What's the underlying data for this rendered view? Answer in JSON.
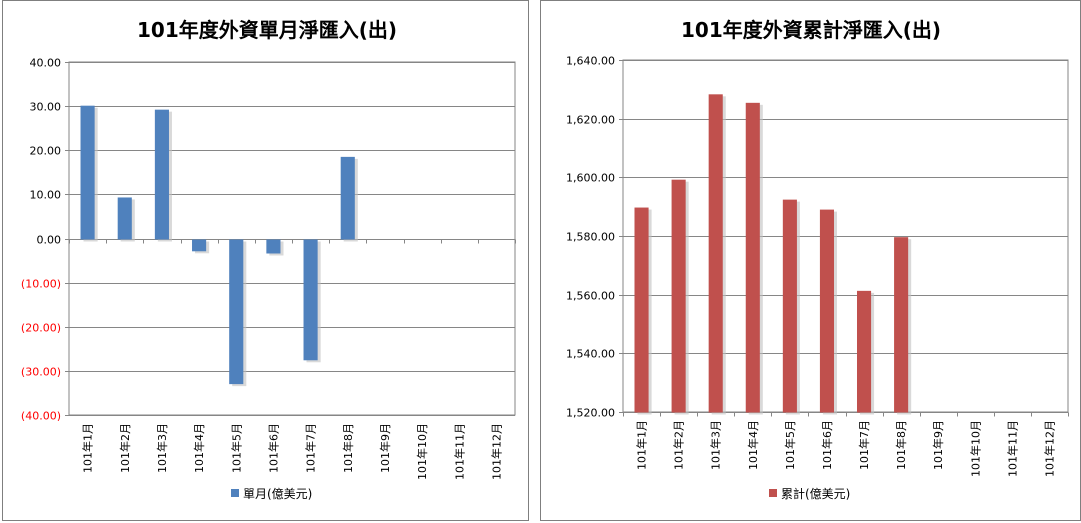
{
  "chart_data": [
    {
      "type": "bar",
      "title": "101年度外資單月淨匯入(出)",
      "categories": [
        "101年1月",
        "101年2月",
        "101年3月",
        "101年4月",
        "101年5月",
        "101年6月",
        "101年7月",
        "101年8月",
        "101年9月",
        "101年10月",
        "101年11月",
        "101年12月"
      ],
      "series": [
        {
          "name": "單月(億美元)",
          "values": [
            30.1,
            9.3,
            29.2,
            -2.9,
            -33.0,
            -3.4,
            -27.6,
            18.5,
            null,
            null,
            null,
            null
          ],
          "color": "#4f81bd"
        }
      ],
      "ylim": [
        -40,
        40
      ],
      "y_ticks": [
        40,
        30,
        20,
        10,
        0,
        -10,
        -20,
        -30,
        -40
      ],
      "y_tick_labels": [
        "40.00",
        "30.00",
        "20.00",
        "10.00",
        "0.00",
        "(10.00)",
        "(20.00)",
        "(30.00)",
        "(40.00)"
      ],
      "negative_tick_color": "#ff0000",
      "grid": true,
      "legend_position": "bottom"
    },
    {
      "type": "bar",
      "title": "101年度外資累計淨匯入(出)",
      "categories": [
        "101年1月",
        "101年2月",
        "101年3月",
        "101年4月",
        "101年5月",
        "101年6月",
        "101年7月",
        "101年8月",
        "101年9月",
        "101年10月",
        "101年11月",
        "101年12月"
      ],
      "series": [
        {
          "name": "累計(億美元)",
          "values": [
            1589.7,
            1599.2,
            1628.3,
            1625.4,
            1592.4,
            1589.0,
            1561.3,
            1579.6,
            null,
            null,
            null,
            null
          ],
          "color": "#c0504d"
        }
      ],
      "ylim": [
        1520,
        1640
      ],
      "y_ticks": [
        1640,
        1620,
        1600,
        1580,
        1560,
        1540,
        1520
      ],
      "y_tick_labels": [
        "1,640.00",
        "1,620.00",
        "1,600.00",
        "1,580.00",
        "1,560.00",
        "1,540.00",
        "1,520.00"
      ],
      "grid": true,
      "legend_position": "bottom"
    }
  ]
}
